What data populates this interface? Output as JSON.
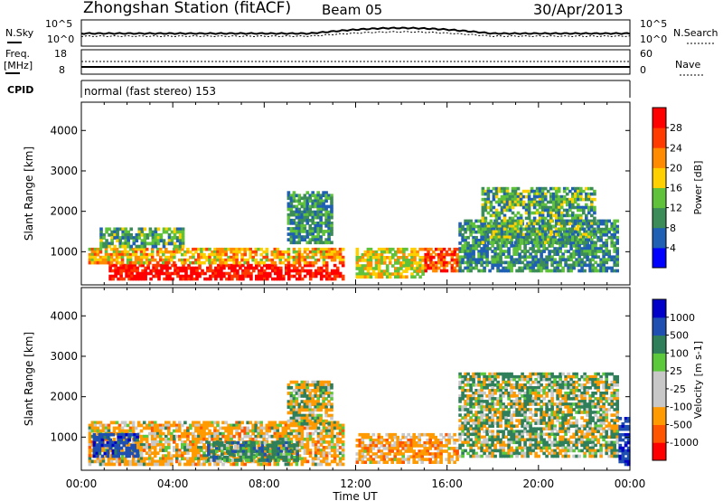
{
  "header": {
    "station": "Zhongshan Station (fitACF)",
    "beam": "Beam 05",
    "date": "30/Apr/2013",
    "cpid_label": "CPID",
    "cpid_text": "normal (fast stereo) 153"
  },
  "top_panels": {
    "nsky": {
      "label": "N.Sky",
      "left_ticks": [
        "10^5",
        "10^0"
      ],
      "right_ticks": [
        "10^5",
        "10^0"
      ],
      "right_label": "N.Search"
    },
    "freq": {
      "label_1": "Freq.",
      "label_2": "[MHz]",
      "left_ticks": [
        "18",
        "8"
      ],
      "right_ticks": [
        "60",
        "0"
      ],
      "right_label": "Nave"
    }
  },
  "colors": {
    "power": [
      "#0000ff",
      "#1f5fb4",
      "#3c8c5a",
      "#5fc23a",
      "#ffd000",
      "#ff8c00",
      "#ff3b00",
      "#ff0000"
    ],
    "velocity": [
      "#ff0000",
      "#ff5500",
      "#ff9a00",
      "#c8c8c8",
      "#c8c8c8",
      "#5cc83c",
      "#2e7f5a",
      "#1f4fb0",
      "#0000c8"
    ]
  },
  "chart_data": [
    {
      "type": "heatmap",
      "name": "power",
      "xlabel": "Time UT",
      "ylabel": "Slant Range [km]",
      "x_ticks": [
        "00:00",
        "04:00",
        "08:00",
        "12:00",
        "16:00",
        "20:00",
        "00:00"
      ],
      "ylim": [
        180,
        4700
      ],
      "y_ticks": [
        1000,
        2000,
        3000,
        4000
      ],
      "colorbar_label": "Power [dB]",
      "colorbar_ticks": [
        "4",
        "8",
        "12",
        "16",
        "20",
        "24",
        "28"
      ],
      "zlim": [
        0,
        32
      ],
      "regions": [
        {
          "t0": 1.2,
          "t1": 11.5,
          "r0": 300,
          "r1": 700,
          "value": 30
        },
        {
          "t0": 0.3,
          "t1": 11.5,
          "r0": 700,
          "r1": 1100,
          "value": 20
        },
        {
          "t0": 0.8,
          "t1": 4.5,
          "r0": 1100,
          "r1": 1600,
          "value": 12
        },
        {
          "t0": 9.0,
          "t1": 11.0,
          "r0": 1200,
          "r1": 2500,
          "value": 10
        },
        {
          "t0": 12.0,
          "t1": 15.0,
          "r0": 350,
          "r1": 1100,
          "value": 18
        },
        {
          "t0": 15.0,
          "t1": 16.5,
          "r0": 500,
          "r1": 1100,
          "value": 26
        },
        {
          "t0": 16.5,
          "t1": 23.5,
          "r0": 500,
          "r1": 1800,
          "value": 10
        },
        {
          "t0": 17.5,
          "t1": 22.5,
          "r0": 1200,
          "r1": 2600,
          "value": 12
        }
      ]
    },
    {
      "type": "heatmap",
      "name": "velocity",
      "xlabel": "Time UT",
      "ylabel": "Slant Range [km]",
      "x_ticks": [
        "00:00",
        "04:00",
        "08:00",
        "12:00",
        "16:00",
        "20:00",
        "00:00"
      ],
      "ylim": [
        180,
        4700
      ],
      "y_ticks": [
        1000,
        2000,
        3000,
        4000
      ],
      "colorbar_label": "Velocity [m s-1]",
      "colorbar_ticks": [
        "1000",
        "500",
        "100",
        "25",
        "-25",
        "-100",
        "-500",
        "-1000"
      ],
      "zlim": [
        -1200,
        1200
      ],
      "regions": [
        {
          "t0": 0.3,
          "t1": 11.5,
          "r0": 300,
          "r1": 1400,
          "value": -200
        },
        {
          "t0": 5.5,
          "t1": 9.5,
          "r0": 400,
          "r1": 900,
          "value": 300
        },
        {
          "t0": 0.5,
          "t1": 2.5,
          "r0": 500,
          "r1": 1100,
          "value": 800
        },
        {
          "t0": 9.0,
          "t1": 11.0,
          "r0": 1300,
          "r1": 2400,
          "value": 0
        },
        {
          "t0": 12.0,
          "t1": 16.5,
          "r0": 350,
          "r1": 1100,
          "value": -300
        },
        {
          "t0": 16.5,
          "t1": 23.5,
          "r0": 500,
          "r1": 2600,
          "value": 60
        },
        {
          "t0": 23.5,
          "t1": 24.0,
          "r0": 300,
          "r1": 1500,
          "value": 900
        }
      ]
    }
  ]
}
